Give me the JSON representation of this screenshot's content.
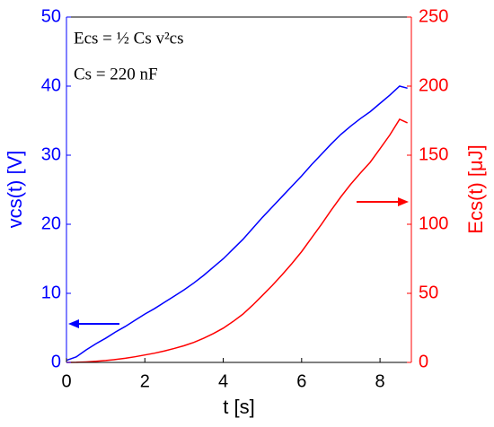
{
  "chart_data": {
    "type": "line",
    "xlabel": "t [s]",
    "ylabel": "vcs(t) [V]",
    "y2label": "Ecs(t) [μJ]",
    "annotations": [
      "Ecs = ½ Cs v²cs",
      "Cs = 220 nF"
    ],
    "x": [
      0,
      0.25,
      0.5,
      0.75,
      1,
      1.25,
      1.5,
      1.75,
      2,
      2.25,
      2.5,
      2.75,
      3,
      3.25,
      3.5,
      3.75,
      4,
      4.25,
      4.5,
      4.75,
      5,
      5.25,
      5.5,
      5.75,
      6,
      6.25,
      6.5,
      6.75,
      7,
      7.25,
      7.5,
      7.75,
      8,
      8.25,
      8.5,
      8.7
    ],
    "series": [
      {
        "name": "vcs",
        "color": "#0000ff",
        "axis": "y",
        "values": [
          0.3,
          0.8,
          1.8,
          2.7,
          3.5,
          4.4,
          5.2,
          6.1,
          7,
          7.8,
          8.7,
          9.6,
          10.5,
          11.5,
          12.6,
          13.8,
          15,
          16.4,
          17.8,
          19.4,
          21,
          22.5,
          24,
          25.5,
          27,
          28.6,
          30.1,
          31.6,
          33,
          34.2,
          35.3,
          36.3,
          37.5,
          38.7,
          40,
          39.7
        ]
      },
      {
        "name": "Ecs",
        "color": "#ff0000",
        "axis": "y2",
        "values": [
          0.01,
          0.07,
          0.36,
          0.8,
          1.35,
          2.1,
          3.0,
          4.1,
          5.4,
          6.7,
          8.3,
          10.1,
          12.1,
          14.5,
          17.5,
          20.9,
          24.8,
          29.6,
          34.9,
          41.4,
          48.5,
          55.7,
          63.4,
          71.5,
          80.2,
          90,
          99.7,
          110,
          119.8,
          128.9,
          137.1,
          144.9,
          154.7,
          164.6,
          176,
          173.4
        ]
      }
    ],
    "xlim": [
      0,
      8.8
    ],
    "xticks": [
      0,
      2,
      4,
      6,
      8
    ],
    "ylim": [
      0,
      50
    ],
    "yticks": [
      0,
      10,
      20,
      30,
      40,
      50
    ],
    "y2lim": [
      0,
      250
    ],
    "y2ticks": [
      0,
      50,
      100,
      150,
      200,
      250
    ],
    "grid": false
  }
}
